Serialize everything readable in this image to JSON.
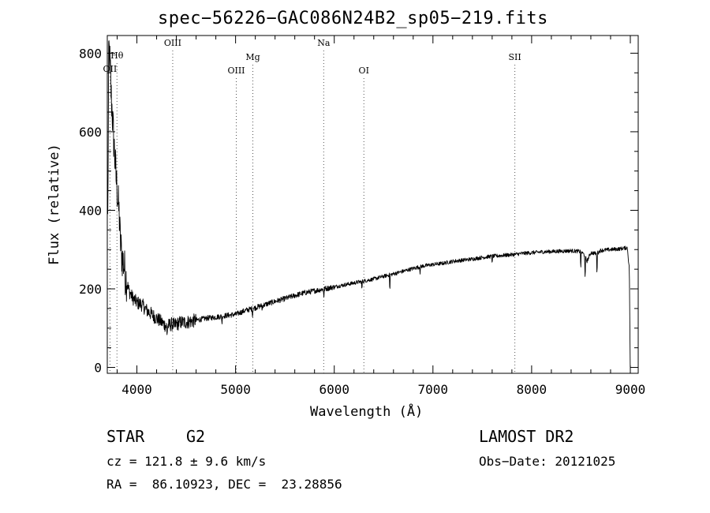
{
  "chart_data": {
    "type": "line",
    "title": "spec−56226−GAC086N24B2_sp05−219.fits",
    "xlabel": "Wavelength (Å)",
    "ylabel": "Flux (relative)",
    "xlim": [
      3700,
      9080
    ],
    "ylim": [
      -15,
      845
    ],
    "x_ticks": [
      4000,
      5000,
      6000,
      7000,
      8000,
      9000
    ],
    "y_ticks": [
      0,
      200,
      400,
      600,
      800
    ],
    "grid": false,
    "series": [
      {
        "x": [
          3700,
          3715,
          3730,
          3740,
          3750,
          3760,
          3770,
          3780,
          3790,
          3800,
          3810,
          3820,
          3830,
          3840,
          3850,
          3860,
          3870,
          3880,
          3900,
          3920,
          3950,
          3980,
          4000,
          4050,
          4100,
          4150,
          4200,
          4250,
          4300,
          4350,
          4400,
          4450,
          4500,
          4600,
          4700,
          4800,
          4900,
          5000,
          5100,
          5200,
          5300,
          5400,
          5500,
          5600,
          5700,
          5800,
          5900,
          6000,
          6100,
          6200,
          6300,
          6400,
          6500,
          6600,
          6700,
          6800,
          6900,
          7000,
          7100,
          7200,
          7300,
          7400,
          7500,
          7600,
          7700,
          7800,
          7900,
          8000,
          8100,
          8200,
          8300,
          8400,
          8500,
          8540,
          8560,
          8600,
          8660,
          8700,
          8800,
          8900,
          8970,
          8990,
          9000
        ],
        "y": [
          150,
          820,
          760,
          690,
          650,
          600,
          560,
          520,
          480,
          450,
          420,
          390,
          330,
          300,
          280,
          270,
          260,
          240,
          215,
          195,
          180,
          170,
          165,
          160,
          145,
          135,
          125,
          115,
          105,
          110,
          110,
          115,
          115,
          120,
          125,
          128,
          132,
          135,
          145,
          152,
          160,
          168,
          175,
          183,
          190,
          195,
          200,
          205,
          210,
          215,
          220,
          225,
          232,
          238,
          245,
          252,
          258,
          262,
          265,
          270,
          273,
          276,
          280,
          283,
          285,
          287,
          290,
          292,
          294,
          295,
          296,
          297,
          295,
          285,
          270,
          292,
          290,
          298,
          300,
          302,
          305,
          250,
          0
        ]
      }
    ],
    "lines": [
      {
        "label": "OII",
        "x": 3727
      },
      {
        "label": "Hθ",
        "x": 3798
      },
      {
        "label": "OIII",
        "x": 4363
      },
      {
        "label": "OIII",
        "x": 5007
      },
      {
        "label": "Mg",
        "x": 5175
      },
      {
        "label": "Na",
        "x": 5893
      },
      {
        "label": "OI",
        "x": 6300
      },
      {
        "label": "SII",
        "x": 7830
      }
    ]
  },
  "info": {
    "class": "STAR",
    "subclass": "G2",
    "survey": "LAMOST DR2",
    "cz": "cz = 121.8 ± 9.6 km/s",
    "obs_date": "Obs−Date: 20121025",
    "coords": "RA =  86.10923, DEC =  23.28856"
  }
}
